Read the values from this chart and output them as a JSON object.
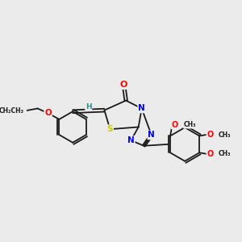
{
  "bg_color": "#ebebeb",
  "bond_color": "#1a1a1a",
  "atom_colors": {
    "O": "#ff0000",
    "N": "#0000ee",
    "S": "#cccc00",
    "C": "#1a1a1a",
    "H": "#2a9090"
  },
  "bond_width": 1.3,
  "figsize": [
    3.0,
    3.0
  ],
  "dpi": 100,
  "xlim": [
    0,
    10
  ],
  "ylim": [
    0,
    10
  ]
}
